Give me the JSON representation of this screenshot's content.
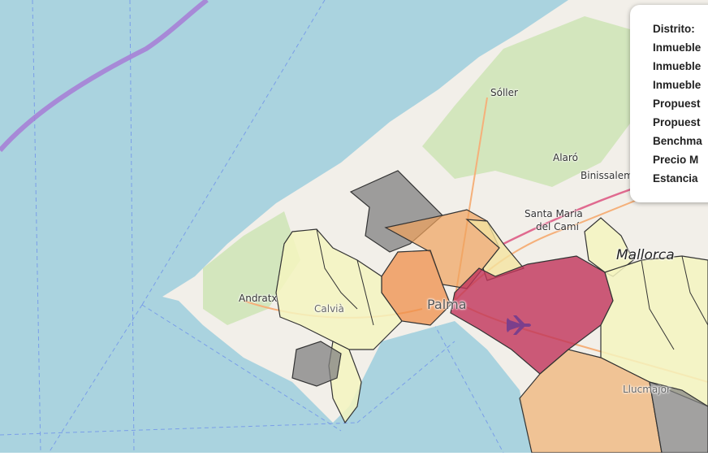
{
  "map": {
    "places": {
      "soller": "Sóller",
      "alaro": "Alaró",
      "binissalem": "Binissalem",
      "santa_maria": "Santa Maria",
      "del_cami": "del Camí",
      "mallorca": "Mallorca",
      "andratx": "Andratx",
      "calvia": "Calvià",
      "palma": "Palma",
      "llucmajor": "Llucmajor"
    },
    "colors": {
      "sea": "#aad3df",
      "land": "#f2efe9",
      "forest": "#cfe4b8",
      "choropleth_high": "#c0335a",
      "choropleth_mid": "#f0a35c",
      "choropleth_low": "#f4f4c0",
      "no_data": "#808080",
      "border_line": "#a77bd6"
    }
  },
  "tooltip": {
    "labels": [
      "Distrito:",
      "Inmueble",
      "Inmueble",
      "Inmueble",
      "Propuest",
      "Propuest",
      "Benchma",
      "Precio M",
      "Estancia"
    ]
  }
}
